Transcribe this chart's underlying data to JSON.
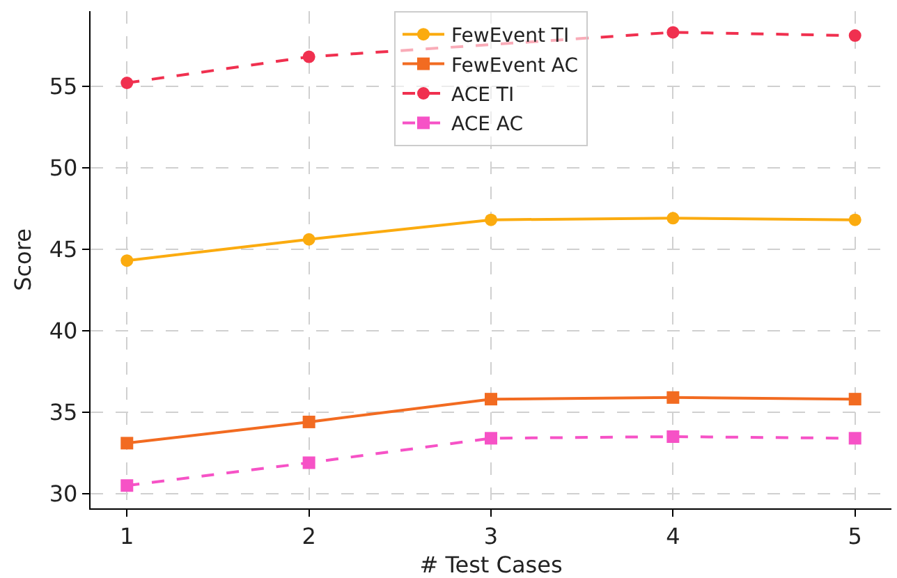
{
  "chart_data": {
    "type": "line",
    "xlabel": "# Test Cases",
    "ylabel": "Score",
    "x": [
      1,
      2,
      3,
      4,
      5
    ],
    "series": [
      {
        "name": "FewEvent TI",
        "color": "#fbab0f",
        "values": [
          44.3,
          45.6,
          46.8,
          46.9,
          46.8
        ],
        "marker": "circle",
        "line_style": "solid"
      },
      {
        "name": "FewEvent AC",
        "color": "#f26b21",
        "values": [
          33.1,
          34.4,
          35.8,
          35.9,
          35.8
        ],
        "marker": "square",
        "line_style": "solid"
      },
      {
        "name": "ACE TI",
        "color": "#f0304f",
        "values": [
          55.2,
          56.8,
          null,
          58.3,
          58.1
        ],
        "marker": "circle",
        "line_style": "dashed"
      },
      {
        "name": "ACE AC",
        "color": "#f652c6",
        "values": [
          30.5,
          31.9,
          33.4,
          33.5,
          33.4
        ],
        "marker": "square",
        "line_style": "dashed"
      }
    ],
    "xlim": [
      0.8,
      5.2
    ],
    "xticks": [
      1,
      2,
      3,
      4,
      5
    ],
    "ylim": [
      29.1,
      59.6
    ],
    "yticks": [
      30,
      35,
      40,
      45,
      50,
      55
    ],
    "grid": true,
    "legend": "top"
  }
}
